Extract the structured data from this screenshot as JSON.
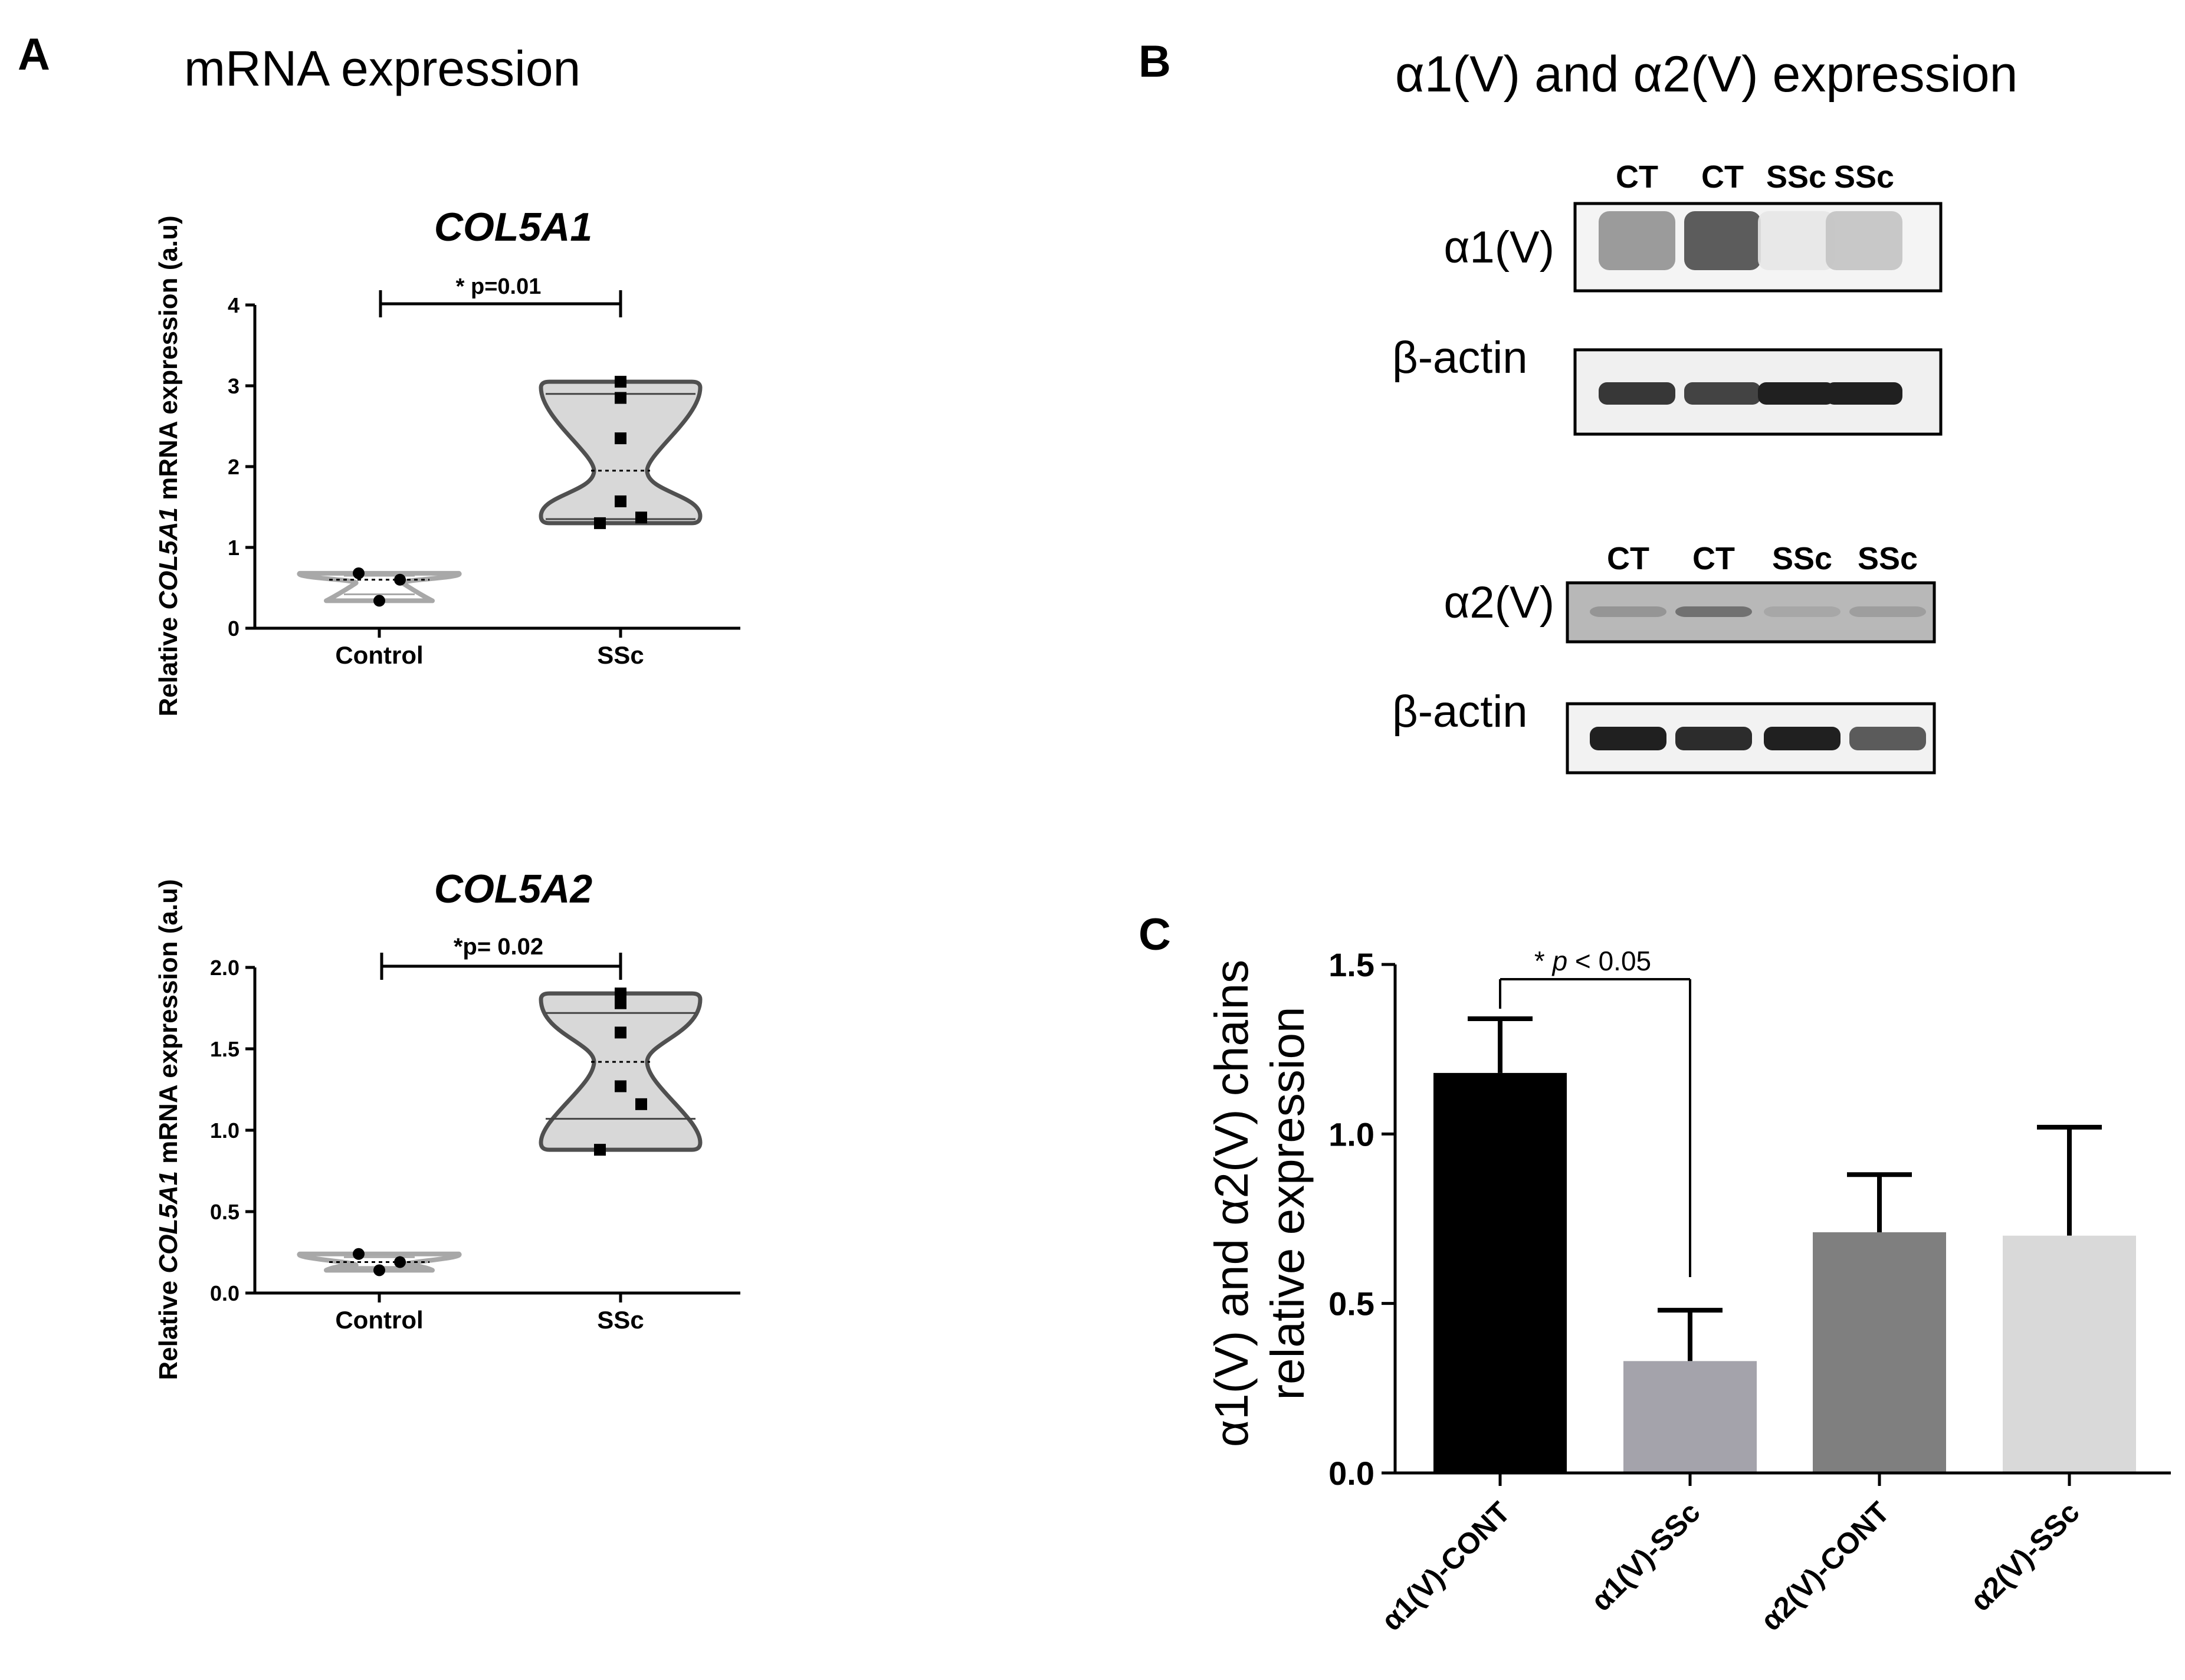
{
  "panel_a": {
    "letter": "A",
    "title": "mRNA expression",
    "ylabel_prefix": "Relative ",
    "ylabel_gene": "COL5A1",
    "ylabel_suffix": " mRNA expression (a.u)"
  },
  "panel_b": {
    "letter": "B",
    "title": "α1(V) and α2(V) expression",
    "blot1": {
      "lanes": [
        "CT",
        "CT",
        "SSc",
        "SSc"
      ],
      "target_label": "α1(V)",
      "target_intensity": [
        0.55,
        0.9,
        0.12,
        0.3
      ],
      "loading_label": "β-actin",
      "loading_intensity": [
        0.85,
        0.8,
        0.95,
        0.95
      ]
    },
    "blot2": {
      "lanes": [
        "CT",
        "CT",
        "SSc",
        "SSc"
      ],
      "target_label": "α2(V)",
      "target_intensity": [
        0.55,
        0.75,
        0.45,
        0.5
      ],
      "loading_label": "β-actin",
      "loading_intensity": [
        0.95,
        0.9,
        0.95,
        0.7
      ]
    }
  },
  "panel_c": {
    "letter": "C"
  },
  "colors": {
    "control_violin": "#a8a8a8",
    "ssc_violin_fill": "#d8d8d8",
    "ssc_violin_stroke": "#505050",
    "bar_colors": [
      "#000000",
      "#a4a3ab",
      "#7f7f7f",
      "#d9d9d9"
    ]
  },
  "chart_data": [
    {
      "type": "violin",
      "title": "COL5A1",
      "categories": [
        "Control",
        "SSc"
      ],
      "yticks": [
        "0",
        "1",
        "2",
        "3",
        "4"
      ],
      "ylim": [
        0,
        4
      ],
      "significance": "* p=0.01",
      "series": [
        {
          "name": "Control",
          "points": [
            0.68,
            0.6,
            0.34
          ],
          "median": 0.6,
          "q1": 0.42,
          "q3": 0.65,
          "range": [
            0.34,
            0.68
          ]
        },
        {
          "name": "SSc",
          "points": [
            3.05,
            2.85,
            2.35,
            1.57,
            1.37,
            1.3
          ],
          "median": 1.95,
          "q1": 1.35,
          "q3": 2.9,
          "range": [
            1.3,
            3.05
          ]
        }
      ]
    },
    {
      "type": "violin",
      "title": "COL5A2",
      "categories": [
        "Control",
        "SSc"
      ],
      "yticks": [
        "0.0",
        "0.5",
        "1.0",
        "1.5",
        "2.0"
      ],
      "ylim": [
        0,
        2
      ],
      "significance": "*p= 0.02",
      "series": [
        {
          "name": "Control",
          "points": [
            0.24,
            0.19,
            0.14
          ],
          "median": 0.19,
          "q1": 0.16,
          "q3": 0.22,
          "range": [
            0.14,
            0.24
          ]
        },
        {
          "name": "SSc",
          "points": [
            1.84,
            1.78,
            1.6,
            1.27,
            1.16,
            0.88
          ],
          "median": 1.42,
          "q1": 1.07,
          "q3": 1.72,
          "range": [
            0.88,
            1.84
          ]
        }
      ]
    },
    {
      "type": "bar",
      "categories": [
        "α1(V)-CONT",
        "α1(V)-SSc",
        "α2(V)-CONT",
        "α2(V)-SSc"
      ],
      "values": [
        1.18,
        0.33,
        0.71,
        0.7
      ],
      "errors": [
        0.16,
        0.15,
        0.17,
        0.32
      ],
      "ylabel": "α1(V) and α2(V) chains relative expression",
      "ylabel_lines": [
        "α1(V) and α2(V) chains",
        "relative expression"
      ],
      "yticks": [
        "0.0",
        "0.5",
        "1.0",
        "1.5"
      ],
      "ylim": [
        0,
        1.5
      ],
      "significance": {
        "star": "* ",
        "p": "p",
        "rest": " < 0.05"
      }
    }
  ]
}
